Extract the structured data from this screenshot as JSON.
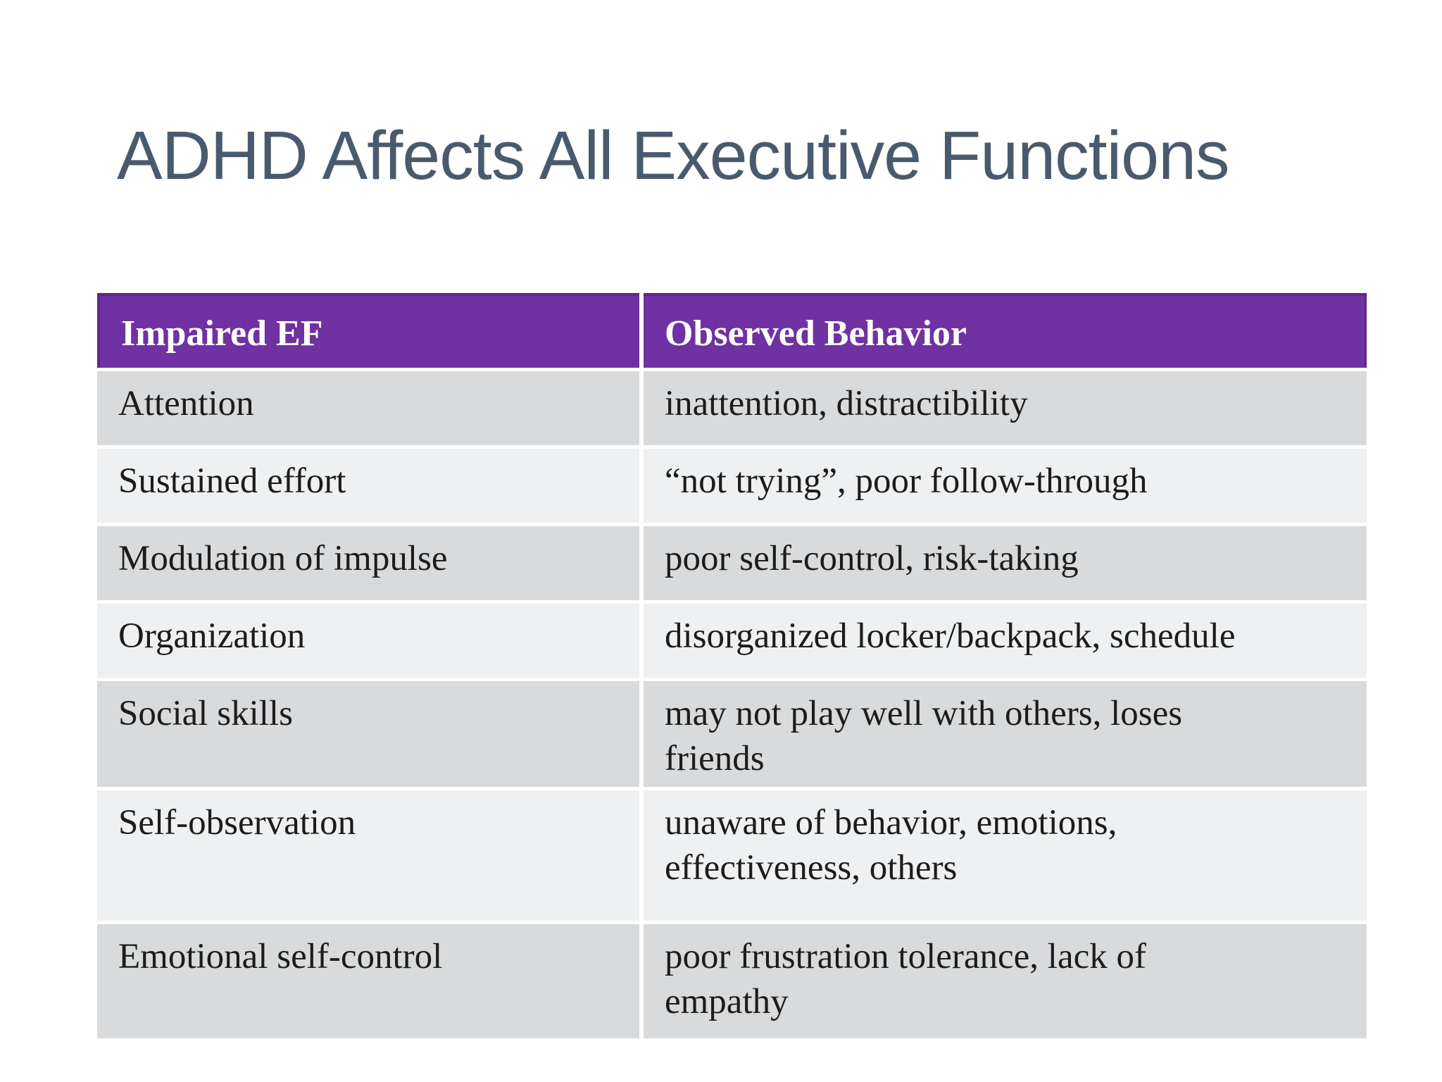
{
  "slide": {
    "title": "ADHD Affects All Executive Functions"
  },
  "table": {
    "columns": [
      "Impaired EF",
      "Observed Behavior"
    ],
    "rows": [
      {
        "impaired_ef": "Attention",
        "observed_behavior": [
          "inattention, distractibility"
        ]
      },
      {
        "impaired_ef": "Sustained effort",
        "observed_behavior": [
          "“not trying”, poor follow-through"
        ]
      },
      {
        "impaired_ef": "Modulation of impulse",
        "observed_behavior": [
          "poor self-control, risk-taking"
        ]
      },
      {
        "impaired_ef": "Organization",
        "observed_behavior": [
          "disorganized locker/backpack, schedule"
        ]
      },
      {
        "impaired_ef": "Social skills",
        "observed_behavior": [
          "may not play well with others, loses",
          "friends"
        ]
      },
      {
        "impaired_ef": "Self-observation",
        "observed_behavior": [
          "unaware of behavior, emotions,",
          "effectiveness, others"
        ]
      },
      {
        "impaired_ef": "Emotional self-control",
        "observed_behavior": [
          "poor frustration tolerance, lack of",
          "empathy"
        ]
      }
    ]
  },
  "colors": {
    "background": "#ffffff",
    "title_text": "#4a5a6e",
    "header_bg": "#7031a3",
    "header_border": "#5e2787",
    "header_text": "#ffffff",
    "row_dark": "#d9dadb",
    "row_light": "#eff0f1",
    "body_text": "#1c1c1c"
  }
}
